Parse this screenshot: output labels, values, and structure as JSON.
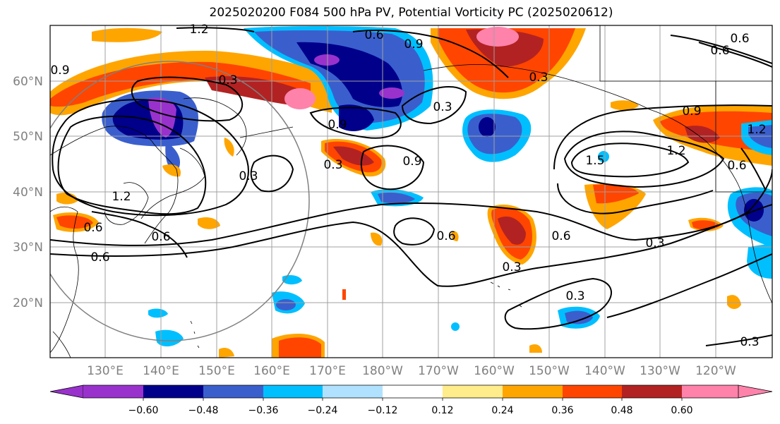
{
  "title": "2025020200 F084 500 hPa PV, Potential Vorticity PC (2025020612)",
  "lat_labels": [
    "60°N",
    "50°N",
    "40°N",
    "30°N",
    "20°N"
  ],
  "lon_labels": [
    "130°E",
    "140°E",
    "150°E",
    "160°E",
    "170°E",
    "180°W",
    "170°W",
    "160°W",
    "150°W",
    "140°W",
    "130°W",
    "120°W"
  ],
  "colorbar": {
    "colors": [
      "#9932cc",
      "#00008b",
      "#3a5fcd",
      "#00bfff",
      "#b0e2ff",
      "#ffffff",
      "#ffec8b",
      "#ffa500",
      "#ff4500",
      "#b22222",
      "#ff82ab"
    ],
    "tick_labels": [
      "−0.60",
      "−0.48",
      "−0.36",
      "−0.24",
      "−0.12",
      "0.12",
      "0.24",
      "0.36",
      "0.48",
      "0.60"
    ]
  },
  "contour_labels": [
    "1.2",
    "0.9",
    "0.6",
    "0.3",
    "0.3",
    "0.3",
    "0.9",
    "0.9",
    "1.2",
    "0.6",
    "0.3",
    "1.2",
    "0.6",
    "0.6",
    "0.6",
    "0.3",
    "0.3",
    "0.3",
    "0.3",
    "0.6",
    "1.5",
    "1.2",
    "0.9",
    "0.6",
    "0.3",
    "0.6",
    "0.9",
    "0.6"
  ]
}
